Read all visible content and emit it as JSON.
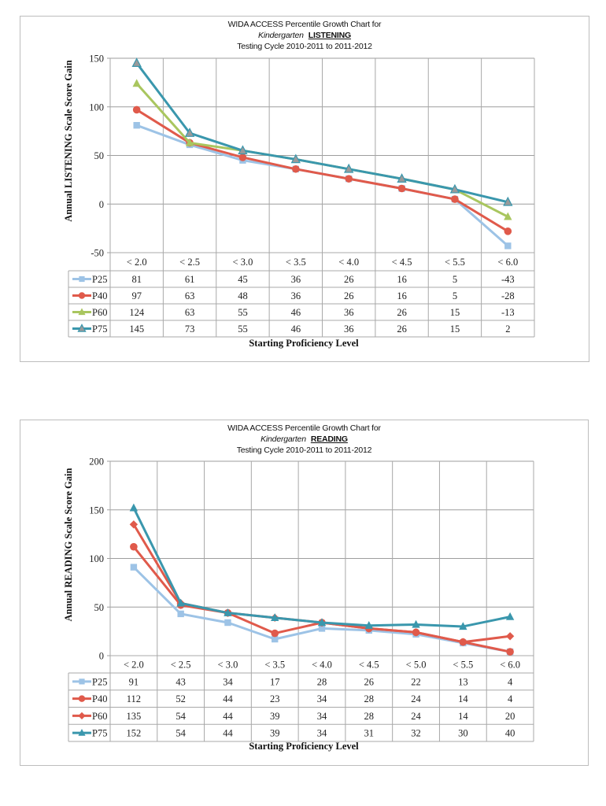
{
  "chart_data": [
    {
      "type": "line",
      "title": "WIDA ACCESS Percentile Growth Chart for",
      "subtitle_grade": "Kindergarten",
      "subtitle_domain": "LISTENING",
      "subtitle_cycle": "Testing Cycle 2010-2011 to 2011-2012",
      "xlabel": "Starting Proficiency Level",
      "ylabel": "Annual LISTENING Scale Score Gain",
      "ylim": [
        -50,
        150
      ],
      "yticks": [
        -50,
        0,
        50,
        100,
        150
      ],
      "ytick_labels": [
        "-50",
        "0",
        "50",
        "100",
        "150"
      ],
      "grid": true,
      "legend": "data-table-left",
      "categories": [
        "< 2.0",
        "< 2.5",
        "< 3.0",
        "< 3.5",
        "< 4.0",
        "< 4.5",
        "< 5.5",
        "< 6.0"
      ],
      "series": [
        {
          "name": "P25",
          "color": "#9dc3e6",
          "marker": "square",
          "values": [
            81,
            61,
            45,
            36,
            26,
            16,
            5,
            -43
          ]
        },
        {
          "name": "P40",
          "color": "#e05a4b",
          "marker": "circle",
          "values": [
            97,
            63,
            48,
            36,
            26,
            16,
            5,
            -28
          ]
        },
        {
          "name": "P60",
          "color": "#a9c65f",
          "marker": "triangle",
          "values": [
            124,
            63,
            55,
            46,
            36,
            26,
            15,
            -13
          ]
        },
        {
          "name": "P75",
          "color": "#3a97ad",
          "marker": "triangle-gray",
          "values": [
            145,
            73,
            55,
            46,
            36,
            26,
            15,
            2
          ]
        }
      ]
    },
    {
      "type": "line",
      "title": "WIDA ACCESS Percentile Growth Chart for",
      "subtitle_grade": "Kindergarten",
      "subtitle_domain": "READING",
      "subtitle_cycle": "Testing Cycle 2010-2011 to 2011-2012",
      "xlabel": "Starting Proficiency Level",
      "ylabel": "Annual READING Scale Score Gain",
      "ylim": [
        0,
        200
      ],
      "yticks": [
        0,
        50,
        100,
        150,
        200
      ],
      "ytick_labels": [
        "0",
        "50",
        "100",
        "150",
        "200"
      ],
      "grid": true,
      "legend": "data-table-left",
      "categories": [
        "< 2.0",
        "< 2.5",
        "< 3.0",
        "< 3.5",
        "< 4.0",
        "< 4.5",
        "< 5.0",
        "< 5.5",
        "< 6.0"
      ],
      "series": [
        {
          "name": "P25",
          "color": "#9dc3e6",
          "marker": "square",
          "values": [
            91,
            43,
            34,
            17,
            28,
            26,
            22,
            13,
            4
          ]
        },
        {
          "name": "P40",
          "color": "#e05a4b",
          "marker": "circle",
          "values": [
            112,
            52,
            44,
            23,
            34,
            28,
            24,
            14,
            4
          ]
        },
        {
          "name": "P60",
          "color": "#e05a4b",
          "marker": "diamond",
          "values": [
            135,
            54,
            44,
            39,
            34,
            28,
            24,
            14,
            20
          ]
        },
        {
          "name": "P75",
          "color": "#3a97ad",
          "marker": "triangle",
          "values": [
            152,
            54,
            44,
            39,
            34,
            31,
            32,
            30,
            40
          ]
        }
      ]
    }
  ]
}
